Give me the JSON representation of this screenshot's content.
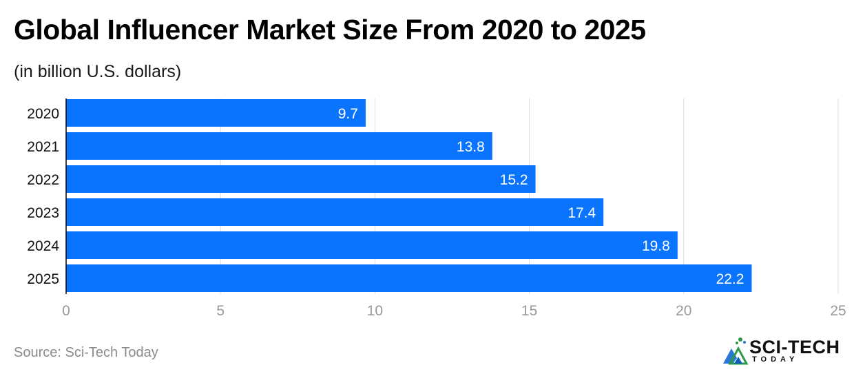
{
  "title": "Global Influencer Market Size From 2020 to 2025",
  "subtitle": "(in billion U.S. dollars)",
  "source": "Source: Sci-Tech Today",
  "logo": {
    "main": "SCI-TECH",
    "sub": "TODAY",
    "icon": "sci-tech-triangle-logo-icon"
  },
  "colors": {
    "bar": "#0a74ff",
    "grid": "#dcdcdc",
    "tick": "#9a9a9a",
    "axis": "#000000",
    "value_label": "#ffffff"
  },
  "chart_data": {
    "type": "bar",
    "orientation": "horizontal",
    "categories": [
      "2020",
      "2021",
      "2022",
      "2023",
      "2024",
      "2025"
    ],
    "values": [
      9.7,
      13.8,
      15.2,
      17.4,
      19.8,
      22.2
    ],
    "value_labels": [
      "9.7",
      "13.8",
      "15.2",
      "17.4",
      "19.8",
      "22.2"
    ],
    "xlim": [
      0,
      25
    ],
    "xticks": [
      0,
      5,
      10,
      15,
      20,
      25
    ],
    "grid": true,
    "legend": "none"
  }
}
